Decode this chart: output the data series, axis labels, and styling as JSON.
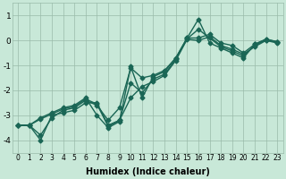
{
  "title": "",
  "xlabel": "Humidex (Indice chaleur)",
  "ylabel": "",
  "bg_color": "#c8e8d8",
  "line_color": "#1a6655",
  "grid_color": "#99bbaa",
  "xlim": [
    -0.5,
    23.5
  ],
  "ylim": [
    -4.5,
    1.5
  ],
  "yticks": [
    1,
    0,
    -1,
    -2,
    -3,
    -4
  ],
  "xticks": [
    0,
    1,
    2,
    3,
    4,
    5,
    6,
    7,
    8,
    9,
    10,
    11,
    12,
    13,
    14,
    15,
    16,
    17,
    18,
    19,
    20,
    21,
    22,
    23
  ],
  "lines": [
    {
      "x": [
        0,
        1,
        2,
        3,
        4,
        5,
        6,
        7,
        8,
        9,
        10,
        11,
        12,
        13,
        14,
        15,
        16,
        17,
        18,
        19,
        20,
        21,
        22,
        23
      ],
      "y": [
        -3.4,
        -3.4,
        -3.8,
        -3.1,
        -2.8,
        -2.7,
        -2.4,
        -2.6,
        -3.2,
        -2.7,
        -1.1,
        -1.5,
        -1.4,
        -1.2,
        -0.7,
        0.1,
        0.1,
        0.25,
        -0.1,
        -0.2,
        -0.5,
        -0.15,
        0.05,
        -0.05
      ]
    },
    {
      "x": [
        0,
        1,
        2,
        3,
        4,
        5,
        6,
        7,
        8,
        9,
        10,
        11,
        12,
        13,
        14,
        15,
        16,
        17,
        18,
        19,
        20,
        21,
        22,
        23
      ],
      "y": [
        -3.4,
        -3.4,
        -4.0,
        -3.0,
        -2.9,
        -2.8,
        -2.5,
        -2.5,
        -3.4,
        -3.2,
        -2.3,
        -1.85,
        -1.65,
        -1.4,
        -0.8,
        0.05,
        0.0,
        0.15,
        -0.2,
        -0.35,
        -0.55,
        -0.25,
        0.0,
        -0.1
      ]
    },
    {
      "x": [
        0,
        1,
        2,
        3,
        4,
        5,
        6,
        7,
        8,
        9,
        10,
        11,
        12,
        13,
        14,
        15,
        16,
        17,
        18,
        19,
        20,
        21,
        22,
        23
      ],
      "y": [
        -3.4,
        -3.4,
        -3.1,
        -2.9,
        -2.7,
        -2.6,
        -2.3,
        -3.0,
        -3.5,
        -3.25,
        -1.05,
        -2.3,
        -1.45,
        -1.25,
        -0.7,
        0.1,
        0.85,
        -0.1,
        -0.3,
        -0.5,
        -0.7,
        -0.15,
        0.05,
        -0.05
      ]
    },
    {
      "x": [
        0,
        1,
        2,
        3,
        4,
        5,
        6,
        7,
        8,
        9,
        10,
        11,
        12,
        13,
        14,
        15,
        16,
        17,
        18,
        19,
        20,
        21,
        22,
        23
      ],
      "y": [
        -3.4,
        -3.4,
        -3.15,
        -2.95,
        -2.75,
        -2.65,
        -2.35,
        -2.55,
        -3.45,
        -3.2,
        -1.7,
        -2.1,
        -1.55,
        -1.35,
        -0.75,
        0.07,
        0.45,
        0.1,
        -0.25,
        -0.42,
        -0.62,
        -0.2,
        0.02,
        -0.07
      ]
    }
  ],
  "marker": "D",
  "markersize": 2.5,
  "linewidth": 1.0
}
